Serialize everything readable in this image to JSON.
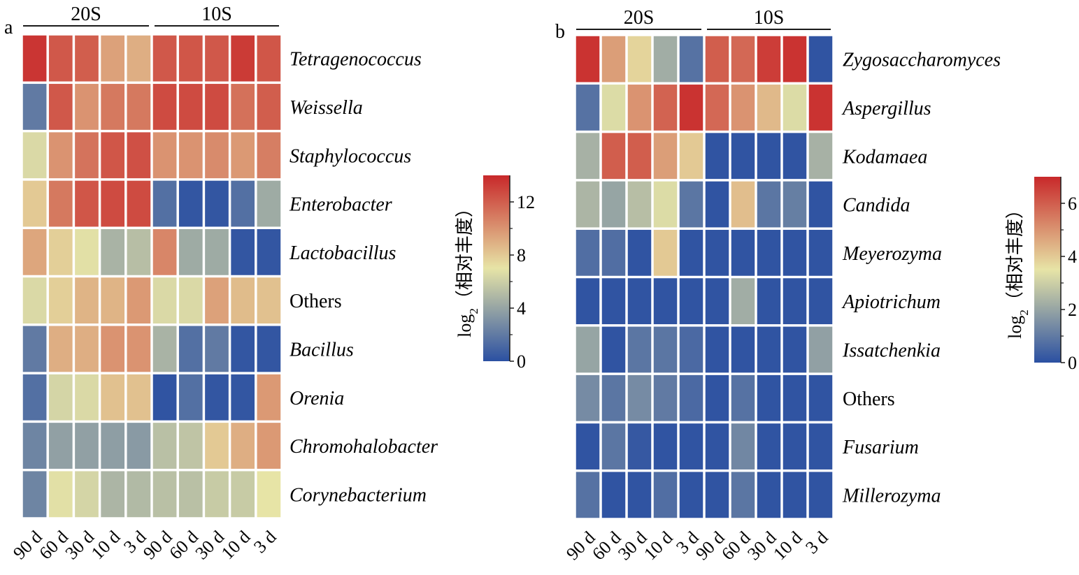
{
  "chart_data": [
    {
      "type": "heatmap",
      "panel": "a",
      "title": "",
      "groups": [
        {
          "label": "20S",
          "columns": [
            "90 d",
            "60 d",
            "30 d",
            "10 d",
            "3 d"
          ]
        },
        {
          "label": "10S",
          "columns": [
            "90 d",
            "60 d",
            "30 d",
            "10 d",
            "3 d"
          ]
        }
      ],
      "x": [
        "90 d",
        "60 d",
        "30 d",
        "10 d",
        "3 d",
        "90 d",
        "60 d",
        "30 d",
        "10 d",
        "3 d"
      ],
      "y": [
        "Tetragenococcus",
        "Weissella",
        "Staphylococcus",
        "Enterobacter",
        "Lactobacillus",
        "Others",
        "Bacillus",
        "Orenia",
        "Chromohalobacter",
        "Corynebacterium"
      ],
      "italic_rows": [
        true,
        true,
        true,
        true,
        true,
        false,
        true,
        true,
        true,
        true
      ],
      "values": [
        [
          13.5,
          12.2,
          12.0,
          9.5,
          9.0,
          12.2,
          12.3,
          12.2,
          13.3,
          12.3
        ],
        [
          2.0,
          12.2,
          10.0,
          11.0,
          11.0,
          12.7,
          12.7,
          12.7,
          11.3,
          12.0
        ],
        [
          6.5,
          10.0,
          11.2,
          12.3,
          12.5,
          10.0,
          10.0,
          10.3,
          9.8,
          10.8
        ],
        [
          8.0,
          11.0,
          12.3,
          12.7,
          12.7,
          1.5,
          0.3,
          0.3,
          1.5,
          4.3
        ],
        [
          9.3,
          7.8,
          6.8,
          4.7,
          5.2,
          10.5,
          4.3,
          4.3,
          0.3,
          0.3
        ],
        [
          6.5,
          7.8,
          8.8,
          8.8,
          9.8,
          6.5,
          6.5,
          9.5,
          8.5,
          8.3
        ],
        [
          2.0,
          9.0,
          9.0,
          10.0,
          10.0,
          4.7,
          1.5,
          2.0,
          0.3,
          0.3
        ],
        [
          1.5,
          6.3,
          6.5,
          8.3,
          8.3,
          0.2,
          1.5,
          0.3,
          0.3,
          9.8
        ],
        [
          2.5,
          3.8,
          3.8,
          3.7,
          3.5,
          5.3,
          5.5,
          8.0,
          9.0,
          9.8
        ],
        [
          2.5,
          6.8,
          6.3,
          4.8,
          5.0,
          5.3,
          5.3,
          5.8,
          5.8,
          7.0
        ]
      ],
      "colorbar": {
        "title_prefix": "log",
        "title_sub": "2",
        "title_suffix": "（相对丰度）",
        "min": 0,
        "max": 14,
        "ticks": [
          0,
          4,
          8,
          12
        ],
        "minor_ticks": [
          2,
          6,
          10
        ],
        "tick_labels": [
          "0",
          "4",
          "8",
          "12"
        ]
      },
      "colormap": [
        "#2b50a2",
        "#e7e4a6",
        "#c8282a"
      ]
    },
    {
      "type": "heatmap",
      "panel": "b",
      "title": "",
      "groups": [
        {
          "label": "20S",
          "columns": [
            "90 d",
            "60 d",
            "30 d",
            "10 d",
            "3 d"
          ]
        },
        {
          "label": "10S",
          "columns": [
            "90 d",
            "60 d",
            "30 d",
            "10 d",
            "3 d"
          ]
        }
      ],
      "x": [
        "90 d",
        "60 d",
        "30 d",
        "10 d",
        "3 d",
        "90 d",
        "60 d",
        "30 d",
        "10 d",
        "3 d"
      ],
      "y": [
        "Zygosaccharomyces",
        "Aspergillus",
        "Kodamaea",
        "Candida",
        "Meyerozyma",
        "Apiotrichum",
        "Issatchenkia",
        "Others",
        "Fusarium",
        "Millerozyma"
      ],
      "italic_rows": [
        true,
        true,
        true,
        true,
        true,
        true,
        true,
        false,
        true,
        true
      ],
      "values": [
        [
          6.8,
          4.8,
          3.8,
          2.2,
          0.8,
          6.0,
          5.8,
          6.6,
          6.8,
          0.1
        ],
        [
          0.8,
          3.3,
          5.0,
          5.9,
          6.8,
          5.8,
          5.0,
          4.3,
          3.3,
          6.8
        ],
        [
          2.3,
          6.0,
          6.0,
          4.8,
          4.0,
          0.1,
          0.1,
          0.1,
          0.1,
          2.3
        ],
        [
          2.4,
          2.0,
          2.6,
          3.3,
          0.9,
          0.1,
          4.2,
          0.9,
          1.1,
          0.1
        ],
        [
          0.7,
          0.7,
          0.1,
          4.0,
          0.1,
          0.1,
          0.1,
          0.1,
          0.1,
          0.1
        ],
        [
          0.1,
          0.1,
          0.1,
          0.1,
          0.1,
          0.1,
          2.2,
          0.1,
          0.1,
          0.1
        ],
        [
          2.0,
          0.1,
          0.9,
          0.9,
          0.6,
          0.1,
          0.1,
          0.1,
          0.1,
          1.9
        ],
        [
          1.4,
          0.9,
          1.4,
          1.0,
          0.6,
          0.1,
          0.8,
          0.1,
          0.1,
          0.1
        ],
        [
          0.1,
          0.9,
          0.2,
          0.1,
          0.1,
          0.1,
          1.3,
          0.1,
          0.1,
          0.1
        ],
        [
          0.8,
          0.1,
          0.1,
          0.7,
          0.1,
          0.1,
          0.9,
          0.1,
          0.1,
          0.1
        ]
      ],
      "colorbar": {
        "title_prefix": "log",
        "title_sub": "2",
        "title_suffix": "（相对丰度）",
        "min": 0,
        "max": 7,
        "ticks": [
          0,
          2,
          4,
          6
        ],
        "minor_ticks": [
          1,
          3,
          5
        ],
        "tick_labels": [
          "0",
          "2",
          "4",
          "6"
        ]
      },
      "colormap": [
        "#2b50a2",
        "#e7e4a6",
        "#c8282a"
      ]
    }
  ]
}
